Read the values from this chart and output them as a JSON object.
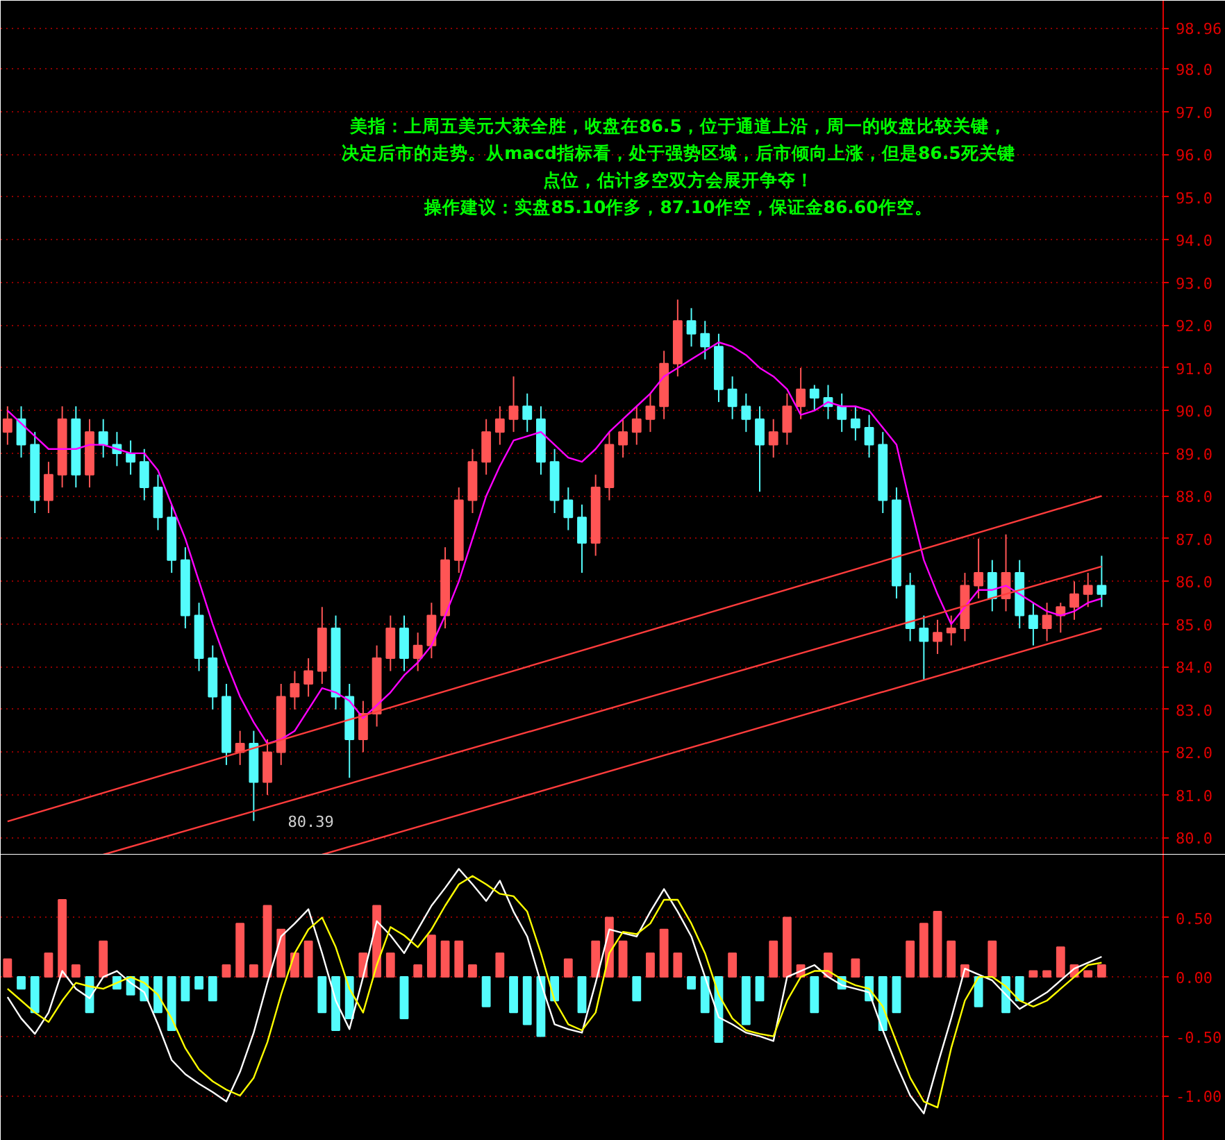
{
  "chart_data": [
    {
      "type": "candlestick",
      "categories": [
        null,
        null,
        null,
        null,
        null,
        null,
        null,
        null,
        null,
        null,
        null,
        null,
        null,
        null,
        null,
        null,
        null,
        null,
        null,
        null,
        null,
        null,
        null,
        null,
        null,
        null,
        null,
        null,
        null,
        null,
        null,
        null,
        null,
        null,
        null,
        null,
        null,
        null,
        null,
        null,
        null,
        null,
        null,
        null,
        null,
        null,
        null,
        null,
        null,
        null,
        null,
        null,
        null,
        null,
        null,
        null,
        null,
        null,
        null,
        null,
        null,
        null,
        null,
        null,
        null,
        null,
        null,
        null,
        null,
        null,
        null,
        null,
        null,
        null,
        null,
        null,
        null,
        null,
        null,
        null,
        null
      ],
      "ohlc": [
        [
          89.5,
          90.1,
          89.2,
          89.8
        ],
        [
          89.8,
          90.1,
          88.9,
          89.2
        ],
        [
          89.2,
          89.5,
          87.6,
          87.9
        ],
        [
          87.9,
          88.8,
          87.6,
          88.5
        ],
        [
          88.5,
          90.1,
          88.2,
          89.8
        ],
        [
          89.8,
          90.1,
          88.2,
          88.5
        ],
        [
          88.5,
          89.8,
          88.2,
          89.5
        ],
        [
          89.5,
          89.8,
          88.9,
          89.2
        ],
        [
          89.2,
          89.5,
          88.7,
          89.0
        ],
        [
          89.0,
          89.3,
          88.5,
          88.8
        ],
        [
          88.8,
          89.1,
          87.9,
          88.2
        ],
        [
          88.2,
          88.5,
          87.2,
          87.5
        ],
        [
          87.5,
          87.8,
          86.2,
          86.5
        ],
        [
          86.5,
          86.8,
          84.9,
          85.2
        ],
        [
          85.2,
          85.5,
          83.9,
          84.2
        ],
        [
          84.2,
          84.5,
          83.0,
          83.3
        ],
        [
          83.3,
          83.6,
          81.7,
          82.0
        ],
        [
          82.0,
          82.5,
          81.7,
          82.2
        ],
        [
          82.2,
          82.5,
          80.39,
          81.3
        ],
        [
          81.3,
          82.3,
          81.0,
          82.0
        ],
        [
          82.0,
          83.6,
          81.7,
          83.3
        ],
        [
          83.3,
          83.9,
          83.0,
          83.6
        ],
        [
          83.6,
          84.2,
          83.3,
          83.9
        ],
        [
          83.9,
          85.4,
          83.6,
          84.9
        ],
        [
          84.9,
          85.2,
          83.0,
          83.3
        ],
        [
          83.3,
          83.6,
          81.4,
          82.3
        ],
        [
          82.3,
          83.2,
          82.0,
          82.9
        ],
        [
          82.9,
          84.5,
          82.6,
          84.2
        ],
        [
          84.2,
          85.2,
          83.9,
          84.9
        ],
        [
          84.9,
          85.2,
          83.9,
          84.2
        ],
        [
          84.2,
          84.8,
          83.9,
          84.5
        ],
        [
          84.5,
          85.5,
          84.2,
          85.2
        ],
        [
          85.2,
          86.8,
          84.9,
          86.5
        ],
        [
          86.5,
          88.2,
          86.2,
          87.9
        ],
        [
          87.9,
          89.1,
          87.6,
          88.8
        ],
        [
          88.8,
          89.8,
          88.5,
          89.5
        ],
        [
          89.5,
          90.1,
          89.2,
          89.8
        ],
        [
          89.8,
          90.8,
          89.5,
          90.1
        ],
        [
          90.1,
          90.4,
          89.5,
          89.8
        ],
        [
          89.8,
          90.1,
          88.5,
          88.8
        ],
        [
          88.8,
          89.1,
          87.6,
          87.9
        ],
        [
          87.9,
          88.2,
          87.2,
          87.5
        ],
        [
          87.5,
          87.8,
          86.2,
          86.9
        ],
        [
          86.9,
          88.5,
          86.6,
          88.2
        ],
        [
          88.2,
          89.5,
          87.9,
          89.2
        ],
        [
          89.2,
          89.8,
          88.9,
          89.5
        ],
        [
          89.5,
          90.1,
          89.2,
          89.8
        ],
        [
          89.8,
          90.4,
          89.5,
          90.1
        ],
        [
          90.1,
          91.4,
          89.8,
          91.1
        ],
        [
          91.1,
          92.6,
          90.8,
          92.1
        ],
        [
          92.1,
          92.4,
          91.5,
          91.8
        ],
        [
          91.8,
          92.1,
          91.2,
          91.5
        ],
        [
          91.5,
          91.8,
          90.2,
          90.5
        ],
        [
          90.5,
          90.8,
          89.8,
          90.1
        ],
        [
          90.1,
          90.4,
          89.5,
          89.8
        ],
        [
          89.8,
          90.1,
          88.1,
          89.2
        ],
        [
          89.2,
          89.8,
          88.9,
          89.5
        ],
        [
          89.5,
          90.4,
          89.2,
          90.1
        ],
        [
          90.1,
          91.0,
          89.8,
          90.5
        ],
        [
          90.5,
          90.6,
          90.0,
          90.3
        ],
        [
          90.3,
          90.6,
          89.8,
          90.1
        ],
        [
          90.1,
          90.4,
          89.5,
          89.8
        ],
        [
          89.8,
          90.1,
          89.3,
          89.6
        ],
        [
          89.6,
          89.9,
          88.9,
          89.2
        ],
        [
          89.2,
          89.5,
          87.6,
          87.9
        ],
        [
          87.9,
          88.2,
          85.6,
          85.9
        ],
        [
          85.9,
          86.2,
          84.6,
          84.9
        ],
        [
          84.9,
          85.2,
          83.7,
          84.6
        ],
        [
          84.6,
          85.1,
          84.3,
          84.8
        ],
        [
          84.8,
          85.2,
          84.5,
          84.9
        ],
        [
          84.9,
          86.2,
          84.6,
          85.9
        ],
        [
          85.9,
          87.0,
          85.6,
          86.2
        ],
        [
          86.2,
          86.5,
          85.3,
          85.6
        ],
        [
          85.6,
          87.1,
          85.3,
          86.2
        ],
        [
          86.2,
          86.5,
          84.9,
          85.2
        ],
        [
          85.2,
          85.5,
          84.5,
          84.9
        ],
        [
          84.9,
          85.5,
          84.6,
          85.2
        ],
        [
          85.2,
          85.5,
          84.8,
          85.4
        ],
        [
          85.4,
          86.0,
          85.1,
          85.7
        ],
        [
          85.7,
          86.2,
          85.4,
          85.9
        ],
        [
          85.9,
          86.6,
          85.4,
          85.7
        ]
      ],
      "colors": [
        "#ff5555",
        "#54fcfc",
        "#54fcfc",
        "#ff5555",
        "#ff5555",
        "#54fcfc",
        "#ff5555",
        "#54fcfc",
        "#54fcfc",
        "#54fcfc",
        "#54fcfc",
        "#54fcfc",
        "#54fcfc",
        "#54fcfc",
        "#54fcfc",
        "#54fcfc",
        "#54fcfc",
        "#ff5555",
        "#54fcfc",
        "#ff5555",
        "#ff5555",
        "#ff5555",
        "#ff5555",
        "#ff5555",
        "#54fcfc",
        "#54fcfc",
        "#ff5555",
        "#ff5555",
        "#ff5555",
        "#54fcfc",
        "#ff5555",
        "#ff5555",
        "#ff5555",
        "#ff5555",
        "#ff5555",
        "#ff5555",
        "#ff5555",
        "#ff5555",
        "#54fcfc",
        "#54fcfc",
        "#54fcfc",
        "#54fcfc",
        "#54fcfc",
        "#ff5555",
        "#ff5555",
        "#ff5555",
        "#ff5555",
        "#ff5555",
        "#ff5555",
        "#ff5555",
        "#54fcfc",
        "#54fcfc",
        "#54fcfc",
        "#54fcfc",
        "#54fcfc",
        "#54fcfc",
        "#ff5555",
        "#ff5555",
        "#ff5555",
        "#54fcfc",
        "#54fcfc",
        "#54fcfc",
        "#54fcfc",
        "#54fcfc",
        "#54fcfc",
        "#54fcfc",
        "#54fcfc",
        "#54fcfc",
        "#ff5555",
        "#ff5555",
        "#ff5555",
        "#ff5555",
        "#54fcfc",
        "#ff5555",
        "#54fcfc",
        "#54fcfc",
        "#ff5555",
        "#ff5555",
        "#ff5555",
        "#ff5555",
        "#54fcfc"
      ],
      "series": [
        {
          "type": "line",
          "color": "#ff00ff",
          "values": [
            90.0,
            89.7,
            89.4,
            89.1,
            89.1,
            89.1,
            89.2,
            89.2,
            89.1,
            89.0,
            89.0,
            88.6,
            87.8,
            87.0,
            86.0,
            85.0,
            84.1,
            83.3,
            82.7,
            82.2,
            82.3,
            82.5,
            83.0,
            83.5,
            83.4,
            83.2,
            82.8,
            83.1,
            83.4,
            83.8,
            84.1,
            84.5,
            85.2,
            86.0,
            87.0,
            88.0,
            88.7,
            89.3,
            89.4,
            89.5,
            89.2,
            88.9,
            88.8,
            89.1,
            89.5,
            89.8,
            90.1,
            90.4,
            90.8,
            91.0,
            91.2,
            91.4,
            91.6,
            91.5,
            91.3,
            91.0,
            90.8,
            90.5,
            89.9,
            90.0,
            90.2,
            90.1,
            90.1,
            90.0,
            89.6,
            89.2,
            87.8,
            86.5,
            85.7,
            85.0,
            85.4,
            85.8,
            85.8,
            85.9,
            85.7,
            85.5,
            85.3,
            85.2,
            85.3,
            85.5,
            85.6
          ]
        },
        {
          "type": "line",
          "color": "#ff3c3c",
          "values": [
            80.38,
            null,
            null,
            null,
            null,
            null,
            null,
            null,
            null,
            null,
            null,
            null,
            null,
            null,
            null,
            null,
            null,
            null,
            null,
            null,
            null,
            null,
            null,
            null,
            null,
            null,
            null,
            null,
            null,
            null,
            null,
            null,
            null,
            null,
            null,
            null,
            null,
            null,
            null,
            null,
            null,
            null,
            null,
            null,
            null,
            null,
            null,
            null,
            null,
            null,
            null,
            null,
            null,
            null,
            null,
            null,
            null,
            null,
            null,
            null,
            null,
            null,
            null,
            null,
            null,
            null,
            null,
            null,
            null,
            null,
            null,
            null,
            null,
            null,
            null,
            null,
            null,
            null,
            null,
            null,
            88.0
          ]
        },
        {
          "type": "line",
          "color": "#ff3c3c",
          "values": [
            null,
            null,
            null,
            null,
            null,
            null,
            null,
            79.6,
            null,
            null,
            null,
            null,
            null,
            null,
            null,
            null,
            null,
            null,
            null,
            null,
            null,
            null,
            null,
            null,
            null,
            null,
            null,
            null,
            null,
            null,
            null,
            null,
            null,
            null,
            null,
            null,
            null,
            null,
            null,
            null,
            null,
            null,
            null,
            null,
            null,
            null,
            null,
            null,
            null,
            null,
            null,
            null,
            null,
            null,
            null,
            null,
            null,
            null,
            null,
            null,
            null,
            null,
            null,
            null,
            null,
            null,
            null,
            null,
            null,
            null,
            null,
            null,
            null,
            null,
            null,
            null,
            null,
            null,
            null,
            null,
            86.35
          ]
        },
        {
          "type": "line",
          "color": "#ff3c3c",
          "values": [
            null,
            null,
            null,
            null,
            null,
            null,
            null,
            null,
            null,
            null,
            null,
            null,
            null,
            null,
            null,
            null,
            null,
            null,
            null,
            null,
            null,
            null,
            null,
            79.6,
            null,
            null,
            null,
            null,
            null,
            null,
            null,
            null,
            null,
            null,
            null,
            null,
            null,
            null,
            null,
            null,
            null,
            null,
            null,
            null,
            null,
            null,
            null,
            null,
            null,
            null,
            null,
            null,
            null,
            null,
            null,
            null,
            null,
            null,
            null,
            null,
            null,
            null,
            null,
            null,
            null,
            null,
            null,
            null,
            null,
            null,
            null,
            null,
            null,
            null,
            null,
            null,
            null,
            null,
            null,
            null,
            84.9
          ]
        }
      ],
      "ylim": [
        79.6,
        99.6
      ],
      "yticks": [
        {
          "value": 80,
          "label": "80.0"
        },
        {
          "value": 81,
          "label": "81.0"
        },
        {
          "value": 82,
          "label": "82.0"
        },
        {
          "value": 83,
          "label": "83.0"
        },
        {
          "value": 84,
          "label": "84.0"
        },
        {
          "value": 85,
          "label": "85.0"
        },
        {
          "value": 86,
          "label": "86.0"
        },
        {
          "value": 87,
          "label": "87.0"
        },
        {
          "value": 88,
          "label": "88.0"
        },
        {
          "value": 89,
          "label": "89.0"
        },
        {
          "value": 90,
          "label": "90.0"
        },
        {
          "value": 91,
          "label": "91.0"
        },
        {
          "value": 92,
          "label": "92.0"
        },
        {
          "value": 93,
          "label": "93.0"
        },
        {
          "value": 94,
          "label": "94.0"
        },
        {
          "value": 95,
          "label": "95.0"
        },
        {
          "value": 96,
          "label": "96.0"
        },
        {
          "value": 97,
          "label": "97.0"
        },
        {
          "value": 98,
          "label": "98.0"
        },
        {
          "value": 98.96,
          "label": "98.96"
        }
      ],
      "tick_labels": "y",
      "grid": "y",
      "annotations": [
        "美指：上周五美元大获全胜，收盘在86.5，位于通道上沿，周一的收盘比较关键，",
        "决定后市的走势。从macd指标看，处于强势区域，后市倾向上涨，但是86.5死关键",
        "点位，估计多空双方会展开争夺！",
        "操作建议：实盘85.10作多，87.10作空，保证金86.60作空。",
        "80.39"
      ]
    },
    {
      "type": "bar",
      "categories": [
        null,
        null,
        null,
        null,
        null,
        null,
        null,
        null,
        null,
        null,
        null,
        null,
        null,
        null,
        null,
        null,
        null,
        null,
        null,
        null,
        null,
        null,
        null,
        null,
        null,
        null,
        null,
        null,
        null,
        null,
        null,
        null,
        null,
        null,
        null,
        null,
        null,
        null,
        null,
        null,
        null,
        null,
        null,
        null,
        null,
        null,
        null,
        null,
        null,
        null,
        null,
        null,
        null,
        null,
        null,
        null,
        null,
        null,
        null,
        null,
        null,
        null,
        null,
        null,
        null,
        null,
        null,
        null,
        null,
        null,
        null,
        null,
        null,
        null,
        null,
        null,
        null,
        null,
        null,
        null,
        null
      ],
      "series": [
        {
          "type": "bar",
          "colors": [
            "#ff5555",
            "#54fcfc",
            "#54fcfc",
            "#ff5555",
            "#ff5555",
            "#ff5555",
            "#54fcfc",
            "#ff5555",
            "#54fcfc",
            "#54fcfc",
            "#54fcfc",
            "#54fcfc",
            "#54fcfc",
            "#54fcfc",
            "#54fcfc",
            "#54fcfc",
            "#ff5555",
            "#ff5555",
            "#ff5555",
            "#ff5555",
            "#ff5555",
            "#ff5555",
            "#ff5555",
            "#54fcfc",
            "#54fcfc",
            "#54fcfc",
            "#ff5555",
            "#ff5555",
            "#ff5555",
            "#54fcfc",
            "#ff5555",
            "#ff5555",
            "#ff5555",
            "#ff5555",
            "#ff5555",
            "#54fcfc",
            "#ff5555",
            "#54fcfc",
            "#54fcfc",
            "#54fcfc",
            "#54fcfc",
            "#ff5555",
            "#54fcfc",
            "#ff5555",
            "#ff5555",
            "#ff5555",
            "#54fcfc",
            "#ff5555",
            "#ff5555",
            "#ff5555",
            "#54fcfc",
            "#54fcfc",
            "#54fcfc",
            "#ff5555",
            "#54fcfc",
            "#54fcfc",
            "#ff5555",
            "#ff5555",
            "#ff5555",
            "#54fcfc",
            "#ff5555",
            "#54fcfc",
            "#ff5555",
            "#54fcfc",
            "#54fcfc",
            "#54fcfc",
            "#ff5555",
            "#ff5555",
            "#ff5555",
            "#ff5555",
            "#ff5555",
            "#54fcfc",
            "#ff5555",
            "#54fcfc",
            "#54fcfc",
            "#ff5555",
            "#ff5555",
            "#ff5555",
            "#ff5555",
            "#ff5555",
            "#ff5555"
          ],
          "values": [
            0.15,
            -0.1,
            -0.3,
            0.2,
            0.65,
            0.1,
            -0.3,
            0.3,
            -0.1,
            -0.15,
            -0.2,
            -0.3,
            -0.45,
            -0.2,
            -0.1,
            -0.2,
            0.1,
            0.45,
            0.1,
            0.6,
            0.4,
            0.2,
            0.3,
            -0.3,
            -0.45,
            -0.35,
            0.2,
            0.6,
            0.2,
            -0.35,
            0.1,
            0.35,
            0.3,
            0.3,
            0.1,
            -0.25,
            0.2,
            -0.3,
            -0.4,
            -0.5,
            -0.2,
            0.15,
            -0.3,
            0.3,
            0.5,
            0.3,
            -0.2,
            0.2,
            0.4,
            0.2,
            -0.1,
            -0.3,
            -0.55,
            0.2,
            -0.4,
            -0.2,
            0.3,
            0.5,
            0.1,
            -0.3,
            0.2,
            -0.1,
            0.15,
            -0.2,
            -0.45,
            -0.3,
            0.3,
            0.45,
            0.55,
            0.3,
            0.1,
            -0.25,
            0.3,
            -0.3,
            -0.2,
            0.05,
            0.05,
            0.25,
            0.1,
            0.05,
            0.1
          ]
        },
        {
          "type": "line",
          "color": "#ffffff",
          "values": [
            -0.17,
            -0.35,
            -0.48,
            -0.3,
            0.05,
            -0.1,
            -0.18,
            0.0,
            0.05,
            -0.05,
            -0.13,
            -0.4,
            -0.7,
            -0.82,
            -0.9,
            -0.97,
            -1.05,
            -0.8,
            -0.47,
            -0.05,
            0.34,
            0.45,
            0.57,
            0.2,
            -0.2,
            -0.44,
            0.0,
            0.47,
            0.35,
            0.2,
            0.4,
            0.6,
            0.75,
            0.91,
            0.78,
            0.64,
            0.81,
            0.55,
            0.34,
            -0.05,
            -0.4,
            -0.44,
            -0.47,
            -0.05,
            0.4,
            0.37,
            0.34,
            0.55,
            0.74,
            0.55,
            0.34,
            0.0,
            -0.34,
            -0.4,
            -0.47,
            -0.5,
            -0.54,
            0.0,
            0.05,
            0.1,
            0.0,
            -0.07,
            -0.1,
            -0.13,
            -0.45,
            -0.74,
            -1.0,
            -1.15,
            -0.74,
            -0.35,
            0.07,
            0.02,
            -0.03,
            -0.15,
            -0.27,
            -0.2,
            -0.13,
            -0.03,
            0.07,
            0.12,
            0.17
          ]
        },
        {
          "type": "line",
          "color": "#ffff00",
          "values": [
            -0.1,
            -0.2,
            -0.3,
            -0.38,
            -0.2,
            -0.05,
            -0.08,
            -0.1,
            -0.05,
            0.0,
            -0.05,
            -0.15,
            -0.35,
            -0.6,
            -0.78,
            -0.88,
            -0.95,
            -1.0,
            -0.85,
            -0.55,
            -0.15,
            0.2,
            0.4,
            0.5,
            0.25,
            -0.1,
            -0.3,
            0.1,
            0.42,
            0.35,
            0.25,
            0.4,
            0.6,
            0.78,
            0.85,
            0.78,
            0.7,
            0.68,
            0.55,
            0.2,
            -0.2,
            -0.4,
            -0.45,
            -0.3,
            0.2,
            0.38,
            0.36,
            0.45,
            0.65,
            0.65,
            0.45,
            0.2,
            -0.15,
            -0.35,
            -0.45,
            -0.48,
            -0.5,
            -0.2,
            0.0,
            0.05,
            0.05,
            -0.02,
            -0.07,
            -0.1,
            -0.25,
            -0.55,
            -0.85,
            -1.05,
            -1.1,
            -0.6,
            -0.2,
            0.0,
            0.0,
            -0.08,
            -0.2,
            -0.25,
            -0.2,
            -0.1,
            0.0,
            0.1,
            0.12
          ]
        }
      ],
      "ylim": [
        -1.38,
        1.03
      ],
      "yticks": [
        {
          "value": -1,
          "label": "-1.00"
        },
        {
          "value": -0.5,
          "label": "-0.50"
        },
        {
          "value": 0,
          "label": "0.00"
        },
        {
          "value": 0.5,
          "label": "0.50"
        }
      ],
      "tick_labels": "y",
      "grid": "y"
    }
  ]
}
